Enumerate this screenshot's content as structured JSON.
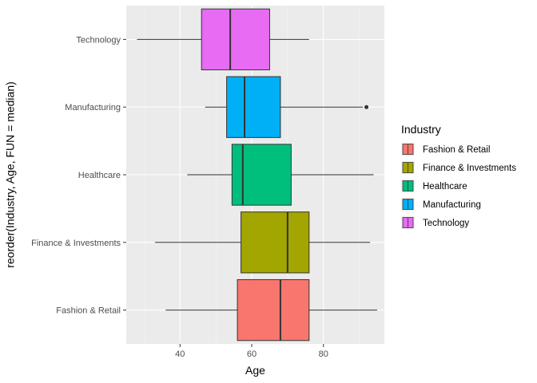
{
  "chart_data": {
    "type": "boxplot",
    "orientation": "horizontal",
    "xlabel": "Age",
    "ylabel": "reorder(Industry, Age, FUN = median)",
    "xlim": [
      25,
      97
    ],
    "x_ticks": [
      40,
      60,
      80
    ],
    "grid": true,
    "legend_position": "right",
    "legend_title": "Industry",
    "categories": [
      "Fashion & Retail",
      "Finance & Investments",
      "Healthcare",
      "Manufacturing",
      "Technology"
    ],
    "boxes": [
      {
        "name": "Fashion & Retail",
        "color": "#F8766D",
        "whisker_low": 36,
        "q1": 56,
        "median": 68,
        "q3": 76,
        "whisker_high": 95,
        "outliers": []
      },
      {
        "name": "Finance & Investments",
        "color": "#A3A500",
        "whisker_low": 33,
        "q1": 57,
        "median": 70,
        "q3": 76,
        "whisker_high": 93,
        "outliers": []
      },
      {
        "name": "Healthcare",
        "color": "#00BF7D",
        "whisker_low": 42,
        "q1": 54.5,
        "median": 57.5,
        "q3": 71,
        "whisker_high": 94,
        "outliers": []
      },
      {
        "name": "Manufacturing",
        "color": "#00B0F6",
        "whisker_low": 47,
        "q1": 53,
        "median": 58,
        "q3": 68,
        "whisker_high": 91,
        "outliers": [
          92
        ]
      },
      {
        "name": "Technology",
        "color": "#E76BF3",
        "whisker_low": 28,
        "q1": 46,
        "median": 54,
        "q3": 65,
        "whisker_high": 76,
        "outliers": []
      }
    ]
  }
}
